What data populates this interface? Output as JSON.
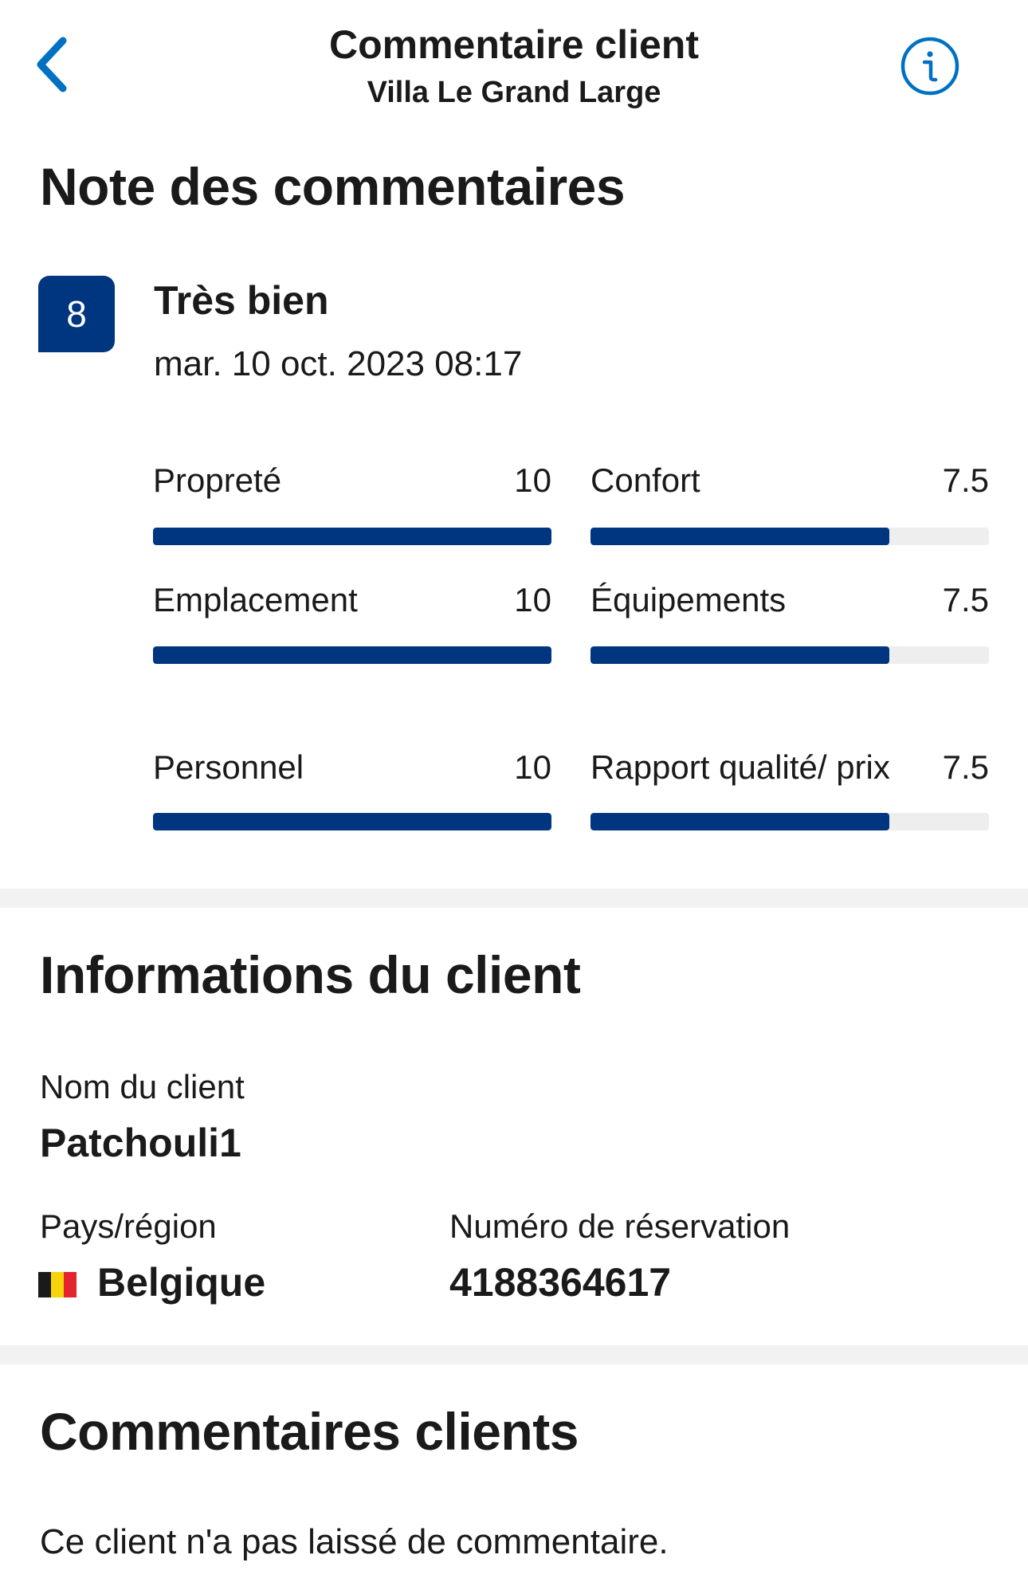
{
  "header": {
    "title": "Commentaire client",
    "subtitle": "Villa Le Grand Large",
    "back_icon": "chevron-left-icon",
    "info_icon": "info-circle-icon",
    "accent_color": "#0071c2"
  },
  "rating": {
    "section_title": "Note des commentaires",
    "score": "8",
    "label": "Très bien",
    "date": "mar. 10 oct. 2023 08:17",
    "bar_color": "#003580",
    "categories": [
      {
        "label": "Propreté",
        "value": "10",
        "fraction": 1.0
      },
      {
        "label": "Confort",
        "value": "7.5",
        "fraction": 0.75
      },
      {
        "label": "Emplacement",
        "value": "10",
        "fraction": 1.0
      },
      {
        "label": "Équipements",
        "value": "7.5",
        "fraction": 0.75
      },
      {
        "label": "Personnel",
        "value": "10",
        "fraction": 1.0
      },
      {
        "label": "Rapport qualité/ prix",
        "value": "7.5",
        "fraction": 0.75
      }
    ]
  },
  "guest_info": {
    "section_title": "Informations du client",
    "name_label": "Nom du client",
    "name_value": "Patchouli1",
    "country_label": "Pays/région",
    "country_value": "Belgique",
    "country_flag_icon": "belgium-flag-icon",
    "booking_label": "Numéro de réservation",
    "booking_value": "4188364617"
  },
  "comments": {
    "section_title": "Commentaires clients",
    "text": "Ce client n'a pas laissé de commentaire."
  }
}
